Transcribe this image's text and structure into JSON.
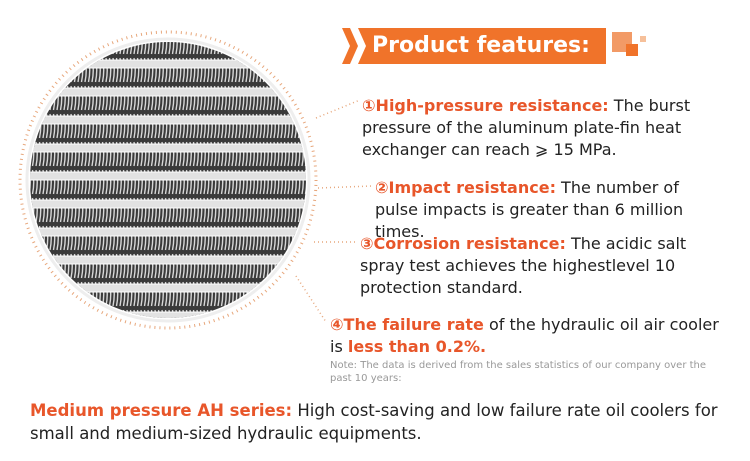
{
  "header": {
    "title": "Product features:"
  },
  "features": [
    {
      "number": "①",
      "title": "High-pressure resistance:",
      "text": " The burst pressure of the aluminum plate-fin heat exchanger can reach ⩾ 15 MPa."
    },
    {
      "number": "②",
      "title": "Impact resistance:",
      "text": " The number of pulse impacts is greater than 6 million times."
    },
    {
      "number": "③",
      "title": "Corrosion resistance:",
      "text": " The acidic salt spray test achieves the highestlevel 10 protection standard."
    },
    {
      "number": "④",
      "title": "The failure rate",
      "text": " of the hydraulic oil air cooler is ",
      "highlight": "less than 0.2%."
    }
  ],
  "note": "Note: The data is derived from the sales statistics of our company over the past 10 years:",
  "footer": {
    "title": "Medium pressure AH series:",
    "text": " High cost-saving and low failure rate oil coolers for small and medium-sized hydraulic equipments."
  }
}
